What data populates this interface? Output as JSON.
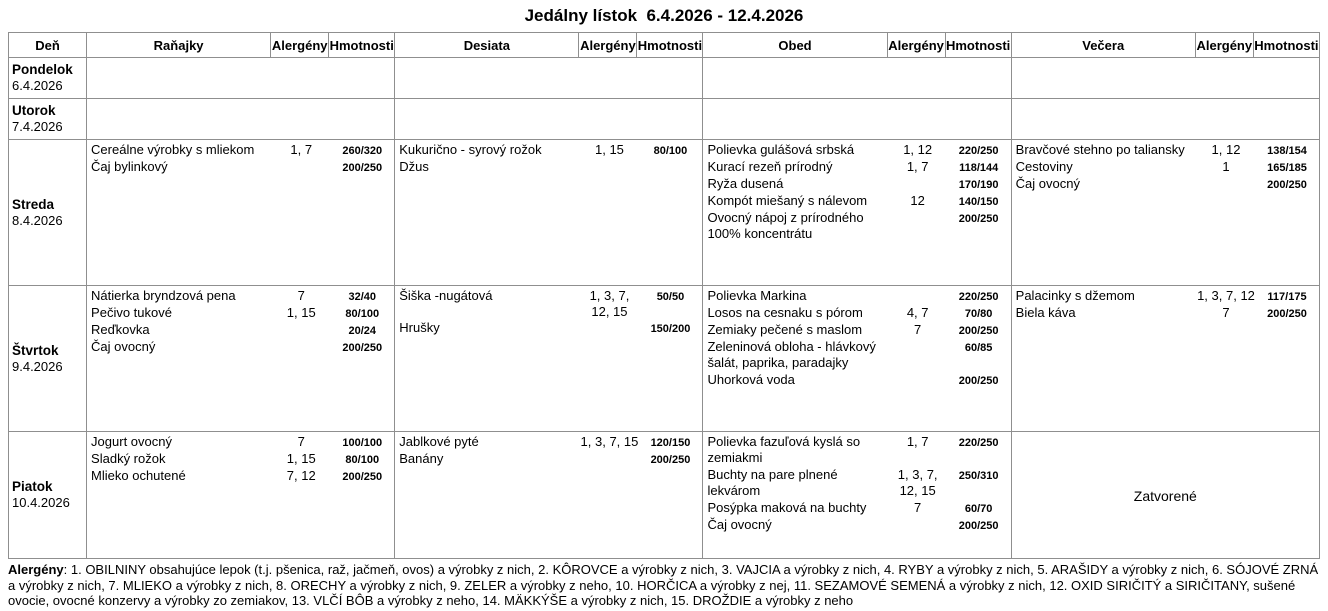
{
  "title": "Jedálny lístok  6.4.2026 - 12.4.2026",
  "table": {
    "headers": {
      "day": "Deň",
      "meal_names": [
        "Raňajky",
        "Desiata",
        "Obed",
        "Večera"
      ],
      "allergens": "Alergény",
      "weights": "Hmotnosti"
    },
    "rows": [
      {
        "day": "Pondelok",
        "date": "6.4.2026",
        "meals": [
          {
            "items": []
          },
          {
            "items": []
          },
          {
            "items": []
          },
          {
            "items": []
          }
        ]
      },
      {
        "day": "Utorok",
        "date": "7.4.2026",
        "meals": [
          {
            "items": []
          },
          {
            "items": []
          },
          {
            "items": []
          },
          {
            "items": []
          }
        ]
      },
      {
        "day": "Streda",
        "date": "8.4.2026",
        "meals": [
          {
            "items": [
              {
                "name": "Cereálne výrobky s mliekom",
                "allergens": "1, 7",
                "weight": "260/320"
              },
              {
                "name": "Čaj bylinkový",
                "allergens": "",
                "weight": "200/250"
              }
            ]
          },
          {
            "items": [
              {
                "name": "Kukurično - syrový rožok",
                "allergens": "1, 15",
                "weight": "80/100"
              },
              {
                "name": "Džus",
                "allergens": "",
                "weight": ""
              }
            ]
          },
          {
            "items": [
              {
                "name": "Polievka gulášová srbská",
                "allergens": "1, 12",
                "weight": "220/250"
              },
              {
                "name": "Kurací rezeň prírodný",
                "allergens": "1, 7",
                "weight": "118/144"
              },
              {
                "name": "Ryža dusená",
                "allergens": "",
                "weight": "170/190"
              },
              {
                "name": "Kompót miešaný s nálevom",
                "allergens": "12",
                "weight": "140/150"
              },
              {
                "name": "Ovocný nápoj z prírodného 100% koncentrátu",
                "allergens": "",
                "weight": "200/250"
              }
            ]
          },
          {
            "items": [
              {
                "name": "Bravčové stehno po taliansky",
                "allergens": "1, 12",
                "weight": "138/154"
              },
              {
                "name": "Cestoviny",
                "allergens": "1",
                "weight": "165/185"
              },
              {
                "name": "Čaj ovocný",
                "allergens": "",
                "weight": "200/250"
              }
            ]
          }
        ]
      },
      {
        "day": "Štvrtok",
        "date": "9.4.2026",
        "meals": [
          {
            "items": [
              {
                "name": "Nátierka bryndzová pena",
                "allergens": "7",
                "weight": "32/40"
              },
              {
                "name": "Pečivo tukové",
                "allergens": "1, 15",
                "weight": "80/100"
              },
              {
                "name": "Reďkovka",
                "allergens": "",
                "weight": "20/24"
              },
              {
                "name": "Čaj ovocný",
                "allergens": "",
                "weight": "200/250"
              }
            ]
          },
          {
            "items": [
              {
                "name": "Šiška -nugátová",
                "allergens": "1, 3, 7, 12, 15",
                "weight": "50/50"
              },
              {
                "name": "Hrušky",
                "allergens": "",
                "weight": "150/200"
              }
            ]
          },
          {
            "items": [
              {
                "name": "Polievka Markina",
                "allergens": "",
                "weight": "220/250"
              },
              {
                "name": "Losos na cesnaku s pórom",
                "allergens": "4, 7",
                "weight": "70/80"
              },
              {
                "name": "Zemiaky pečené s maslom",
                "allergens": "7",
                "weight": "200/250"
              },
              {
                "name": "Zeleninová obloha - hlávkový šalát, paprika, paradajky",
                "allergens": "",
                "weight": "60/85"
              },
              {
                "name": "Uhorková voda",
                "allergens": "",
                "weight": "200/250"
              }
            ]
          },
          {
            "items": [
              {
                "name": "Palacinky s džemom",
                "allergens": "1, 3, 7, 12",
                "weight": "117/175"
              },
              {
                "name": "Biela káva",
                "allergens": "7",
                "weight": "200/250"
              }
            ]
          }
        ]
      },
      {
        "day": "Piatok",
        "date": "10.4.2026",
        "meals": [
          {
            "items": [
              {
                "name": "Jogurt ovocný",
                "allergens": "7",
                "weight": "100/100"
              },
              {
                "name": "Sladký rožok",
                "allergens": "1, 15",
                "weight": "80/100"
              },
              {
                "name": "Mlieko ochutené",
                "allergens": "7, 12",
                "weight": "200/250"
              }
            ]
          },
          {
            "items": [
              {
                "name": "Jablkové pyté",
                "allergens": "1, 3, 7, 15",
                "weight": "120/150"
              },
              {
                "name": "Banány",
                "allergens": "",
                "weight": "200/250"
              }
            ]
          },
          {
            "items": [
              {
                "name": "Polievka fazuľová kyslá so zemiakmi",
                "allergens": "1, 7",
                "weight": "220/250"
              },
              {
                "name": "Buchty na pare plnené lekvárom",
                "allergens": "1, 3, 7, 12, 15",
                "weight": "250/310"
              },
              {
                "name": "Posýpka maková na buchty",
                "allergens": "7",
                "weight": "60/70"
              },
              {
                "name": "Čaj ovocný",
                "allergens": "",
                "weight": "200/250"
              }
            ]
          },
          {
            "closed": "Zatvorené",
            "items": []
          }
        ]
      }
    ]
  },
  "footer": {
    "label": "Alergény",
    "text": ": 1. OBILNINY obsahujúce lepok (t.j. pšenica, raž, jačmeň, ovos) a výrobky z nich, 2. KÔROVCE a výrobky z nich, 3. VAJCIA a výrobky z nich, 4. RYBY a výrobky z nich, 5. ARAŠIDY a výrobky z nich, 6. SÓJOVÉ ZRNÁ a výrobky z nich, 7. MLIEKO a výrobky z nich, 8. ORECHY a výrobky z nich, 9. ZELER a výrobky z neho, 10. HORČICA a výrobky z nej, 11. SEZAMOVÉ SEMENÁ a výrobky z nich, 12. OXID SIRIČITÝ a SIRIČITANY, sušené ovocie, ovocné konzervy a výrobky zo zemiakov, 13. VLČÍ BÔB a výrobky z neho, 14. MÄKKÝŠE a výrobky z nich, 15. DROŽDIE a výrobky z neho"
  }
}
